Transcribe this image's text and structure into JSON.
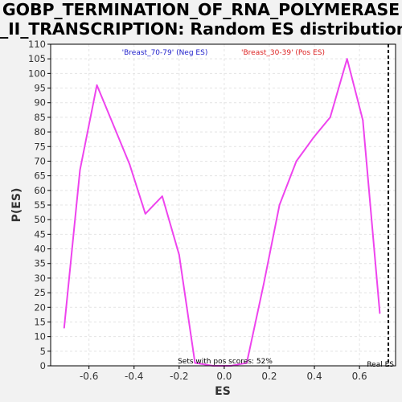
{
  "chart_data": {
    "type": "line",
    "title_lines": [
      "GOBP_TERMINATION_OF_RNA_POLYMERASE",
      "_II_TRANSCRIPTION: Random ES distribution"
    ],
    "xlabel": "ES",
    "ylabel": "P(ES)",
    "xlim": [
      -0.77,
      0.76
    ],
    "ylim": [
      0,
      110
    ],
    "xticks": [
      -0.6,
      -0.4,
      -0.2,
      0.0,
      0.2,
      0.4,
      0.6
    ],
    "xtick_labels": [
      "-0.6",
      "-0.4",
      "-0.2",
      "0.0",
      "0.2",
      "0.4",
      "0.6"
    ],
    "yticks": [
      0,
      5,
      10,
      15,
      20,
      25,
      30,
      35,
      40,
      45,
      50,
      55,
      60,
      65,
      70,
      75,
      80,
      85,
      90,
      95,
      100,
      105,
      110
    ],
    "ytick_labels": [
      "0",
      "5",
      "10",
      "15",
      "20",
      "25",
      "30",
      "35",
      "40",
      "45",
      "50",
      "55",
      "60",
      "65",
      "70",
      "75",
      "80",
      "85",
      "90",
      "95",
      "100",
      "105",
      "110"
    ],
    "grid": true,
    "series": [
      {
        "color": "#ee44ee",
        "x": [
          -0.71,
          -0.64,
          -0.565,
          -0.495,
          -0.42,
          -0.35,
          -0.275,
          -0.2,
          -0.13,
          -0.05,
          0.03,
          0.1,
          0.175,
          0.245,
          0.32,
          0.395,
          0.47,
          0.545,
          0.615,
          0.69
        ],
        "y": [
          13,
          67,
          96,
          83,
          69,
          52,
          58,
          38,
          1,
          0,
          0,
          1,
          28,
          55,
          70,
          78,
          85,
          105,
          84,
          18
        ]
      }
    ],
    "legend": [
      {
        "label": "'Breast_70-79' (Neg ES)",
        "color": "#2222cc"
      },
      {
        "label": "'Breast_30-39' (Pos ES)",
        "color": "#dd2222"
      }
    ],
    "real_es": {
      "x": 0.728,
      "label": "Real ES"
    },
    "annotation": "Sets with pos scores: 52%"
  }
}
